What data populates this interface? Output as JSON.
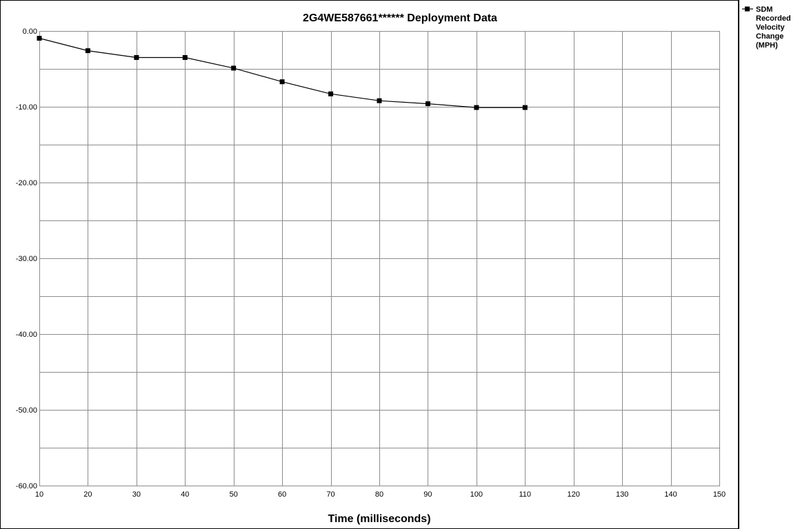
{
  "chart_data": {
    "type": "line",
    "title": "2G4WE587661******  Deployment Data",
    "xlabel": "Time (milliseconds)",
    "ylabel": "",
    "xlim": [
      10,
      150
    ],
    "ylim": [
      -60,
      0
    ],
    "x_ticks": [
      10,
      20,
      30,
      40,
      50,
      60,
      70,
      80,
      90,
      100,
      110,
      120,
      130,
      140,
      150
    ],
    "y_ticks": [
      0,
      -10,
      -20,
      -30,
      -40,
      -50,
      -60
    ],
    "y_tick_labels": [
      "0.00",
      "-10.00",
      "-20.00",
      "-30.00",
      "-40.00",
      "-50.00",
      "-60.00"
    ],
    "grid": true,
    "legend_position": "right",
    "series": [
      {
        "name": "SDM Recorded Velocity Change (MPH)",
        "marker": "square",
        "color": "#000000",
        "x": [
          10,
          20,
          30,
          40,
          50,
          60,
          70,
          80,
          90,
          100,
          110
        ],
        "y": [
          -0.95,
          -2.6,
          -3.5,
          -3.5,
          -4.9,
          -6.7,
          -8.3,
          -9.2,
          -9.6,
          -10.1,
          -10.1
        ]
      }
    ]
  }
}
